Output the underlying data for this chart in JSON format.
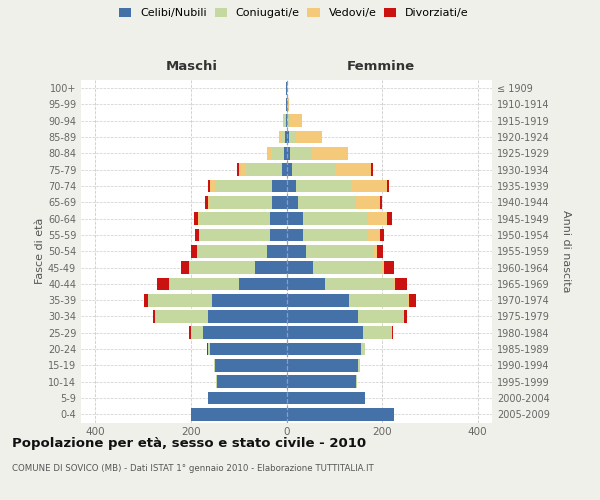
{
  "age_groups": [
    "0-4",
    "5-9",
    "10-14",
    "15-19",
    "20-24",
    "25-29",
    "30-34",
    "35-39",
    "40-44",
    "45-49",
    "50-54",
    "55-59",
    "60-64",
    "65-69",
    "70-74",
    "75-79",
    "80-84",
    "85-89",
    "90-94",
    "95-99",
    "100+"
  ],
  "birth_years": [
    "2005-2009",
    "2000-2004",
    "1995-1999",
    "1990-1994",
    "1985-1989",
    "1980-1984",
    "1975-1979",
    "1970-1974",
    "1965-1969",
    "1960-1964",
    "1955-1959",
    "1950-1954",
    "1945-1949",
    "1940-1944",
    "1935-1939",
    "1930-1934",
    "1925-1929",
    "1920-1924",
    "1915-1919",
    "1910-1914",
    "≤ 1909"
  ],
  "maschi": {
    "celibi": [
      200,
      165,
      145,
      150,
      160,
      175,
      165,
      155,
      100,
      65,
      40,
      35,
      35,
      30,
      30,
      10,
      5,
      3,
      2,
      1,
      1
    ],
    "coniugati": [
      0,
      0,
      2,
      2,
      5,
      25,
      110,
      135,
      145,
      140,
      145,
      145,
      145,
      130,
      120,
      75,
      25,
      8,
      3,
      0,
      0
    ],
    "vedovi": [
      0,
      0,
      0,
      0,
      0,
      0,
      0,
      0,
      0,
      0,
      2,
      3,
      5,
      5,
      10,
      15,
      10,
      5,
      2,
      0,
      0
    ],
    "divorziati": [
      0,
      0,
      0,
      0,
      2,
      3,
      5,
      8,
      25,
      15,
      12,
      8,
      8,
      5,
      5,
      3,
      0,
      0,
      0,
      0,
      0
    ]
  },
  "femmine": {
    "nubili": [
      225,
      165,
      145,
      150,
      155,
      160,
      150,
      130,
      80,
      55,
      40,
      35,
      35,
      25,
      20,
      12,
      8,
      5,
      2,
      1,
      1
    ],
    "coniugate": [
      0,
      0,
      2,
      3,
      10,
      60,
      95,
      125,
      145,
      145,
      140,
      135,
      135,
      120,
      115,
      90,
      45,
      15,
      5,
      0,
      0
    ],
    "vedove": [
      0,
      0,
      0,
      0,
      0,
      0,
      0,
      2,
      3,
      5,
      10,
      25,
      40,
      50,
      75,
      75,
      75,
      55,
      25,
      4,
      0
    ],
    "divorziate": [
      0,
      0,
      0,
      0,
      0,
      2,
      8,
      15,
      25,
      20,
      12,
      10,
      10,
      5,
      5,
      5,
      0,
      0,
      0,
      0,
      0
    ]
  },
  "colors": {
    "celibi": "#4472a8",
    "coniugati": "#c5d8a0",
    "vedovi": "#f5c97a",
    "divorziati": "#cc1111"
  },
  "xlim": 430,
  "xticks": [
    -400,
    -200,
    0,
    200,
    400
  ],
  "title": "Popolazione per età, sesso e stato civile - 2010",
  "subtitle": "COMUNE DI SOVICO (MB) - Dati ISTAT 1° gennaio 2010 - Elaborazione TUTTITALIA.IT",
  "header_left": "Maschi",
  "header_right": "Femmine",
  "ylabel_left": "Fasce di età",
  "ylabel_right": "Anni di nascita",
  "legend_labels": [
    "Celibi/Nubili",
    "Coniugati/e",
    "Vedovi/e",
    "Divorziati/e"
  ],
  "bg_color": "#f0f0eb",
  "plot_bg": "#ffffff"
}
